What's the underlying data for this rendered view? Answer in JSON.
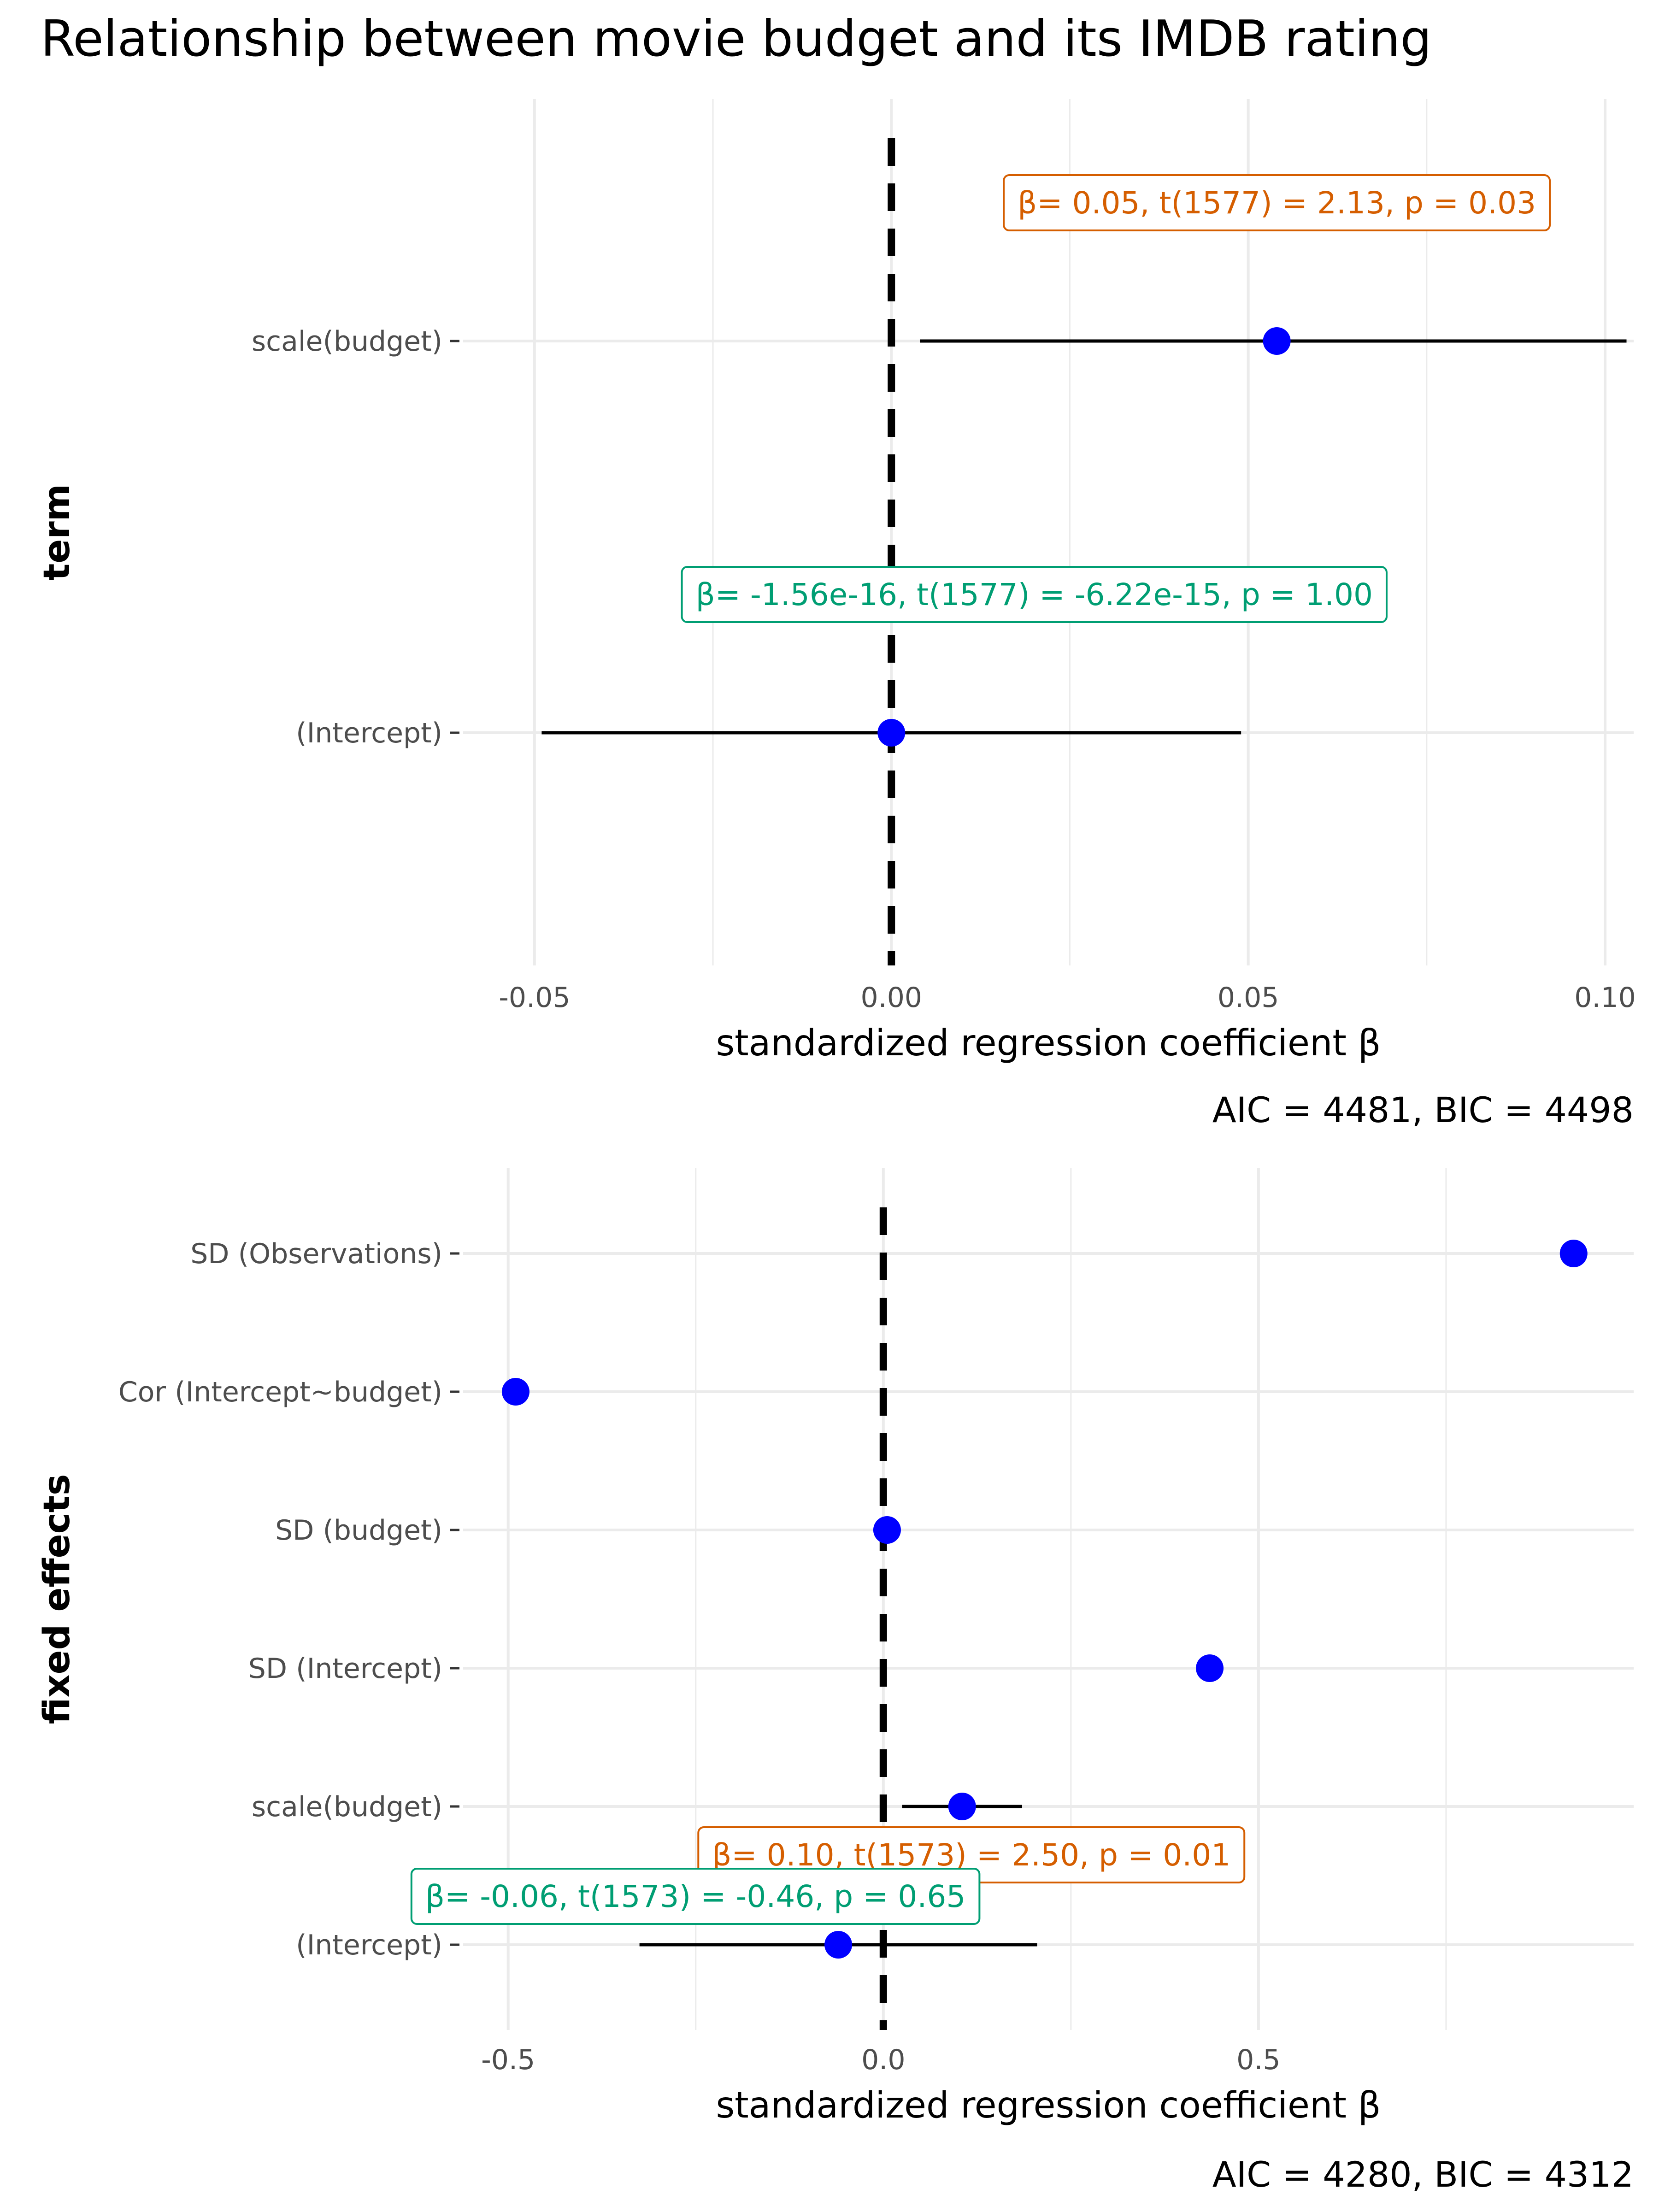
{
  "title": "Relationship between movie budget and its IMDB rating",
  "colors": {
    "point": "#0000ff",
    "positive": "#d55e00",
    "negative": "#009e73",
    "grid": "#ebebeb"
  },
  "chart_data": [
    {
      "type": "scatter",
      "xlabel": "standardized regression coefficient β",
      "ylabel": "term",
      "caption": "AIC = 4481, BIC = 4498",
      "xlim": [
        -0.06,
        0.104
      ],
      "xticks": [
        -0.05,
        0.0,
        0.05,
        0.1
      ],
      "xtick_labels": [
        "-0.05",
        "0.00",
        "0.05",
        "0.10"
      ],
      "reference_line": 0,
      "grid": true,
      "terms": [
        {
          "name": "scale(budget)",
          "estimate": 0.054,
          "ci": [
            0.004,
            0.103
          ],
          "label": "β= 0.05, t(1577) = 2.13, p = 0.03",
          "sign": "positive"
        },
        {
          "name": "(Intercept)",
          "estimate": 0.0,
          "ci": [
            -0.049,
            0.049
          ],
          "label": "β= -1.56e-16, t(1577) = -6.22e-15, p = 1.00",
          "sign": "negative"
        }
      ]
    },
    {
      "type": "scatter",
      "xlabel": "standardized regression coefficient β",
      "ylabel": "fixed effects",
      "caption": "AIC = 4280, BIC = 4312",
      "xlim": [
        -0.56,
        1.0
      ],
      "xticks": [
        -0.5,
        0.0,
        0.5
      ],
      "xtick_labels": [
        "-0.5",
        "0.0",
        "0.5"
      ],
      "reference_line": 0,
      "grid": true,
      "terms": [
        {
          "name": "SD (Observations)",
          "estimate": 0.92,
          "ci": null,
          "label": "",
          "sign": ""
        },
        {
          "name": "Cor (Intercept~budget)",
          "estimate": -0.49,
          "ci": null,
          "label": "",
          "sign": ""
        },
        {
          "name": "SD (budget)",
          "estimate": 0.005,
          "ci": null,
          "label": "",
          "sign": ""
        },
        {
          "name": "SD (Intercept)",
          "estimate": 0.435,
          "ci": null,
          "label": "",
          "sign": ""
        },
        {
          "name": "scale(budget)",
          "estimate": 0.105,
          "ci": [
            0.025,
            0.185
          ],
          "label": "β= 0.10, t(1573) = 2.50, p = 0.01",
          "sign": "positive"
        },
        {
          "name": "(Intercept)",
          "estimate": -0.06,
          "ci": [
            -0.325,
            0.205
          ],
          "label": "β= -0.06, t(1573) = -0.46, p = 0.65",
          "sign": "negative"
        }
      ]
    }
  ]
}
